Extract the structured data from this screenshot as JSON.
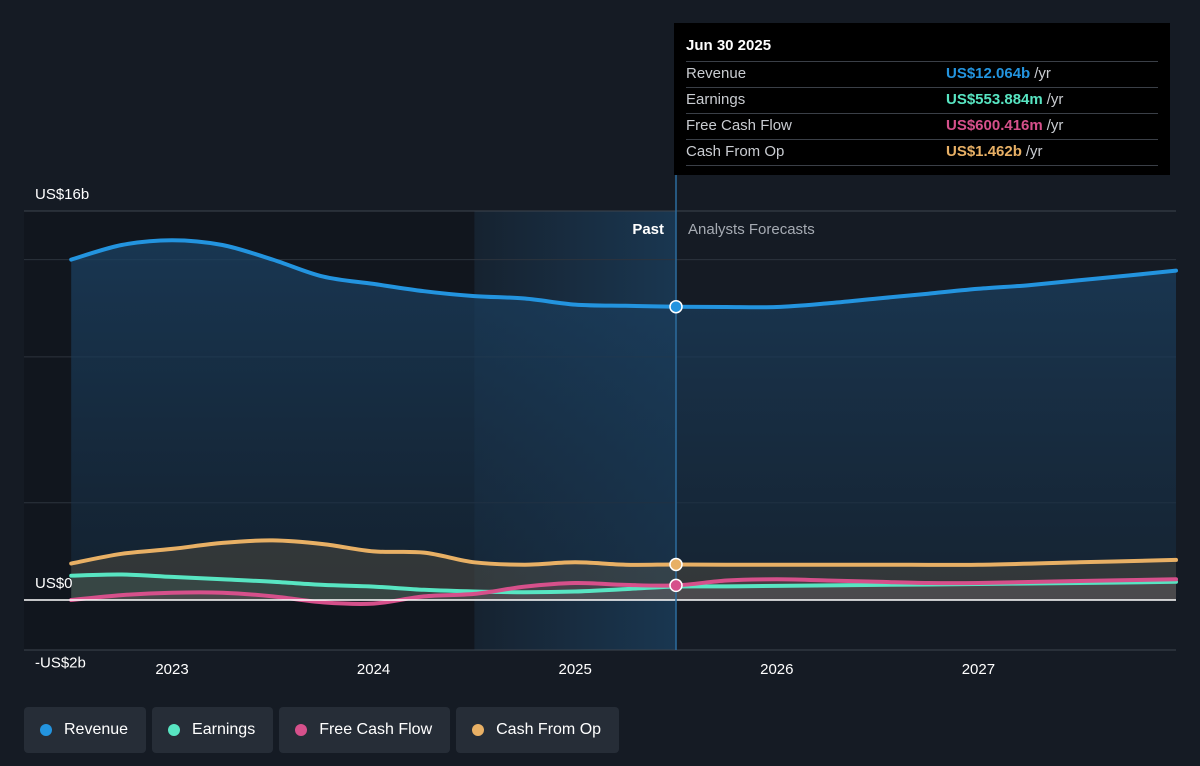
{
  "colors": {
    "background": "#151b24",
    "revenue": "#2394df",
    "earnings": "#58e5c2",
    "free_cash_flow": "#d6508b",
    "cash_from_op": "#e8b065",
    "past_band": "#1d4d75"
  },
  "tooltip": {
    "date": "Jun 30 2025",
    "rows": [
      {
        "name": "Revenue",
        "value": "US$12.064b",
        "unit": "/yr",
        "color": "#2394df"
      },
      {
        "name": "Earnings",
        "value": "US$553.884m",
        "unit": "/yr",
        "color": "#58e5c2"
      },
      {
        "name": "Free Cash Flow",
        "value": "US$600.416m",
        "unit": "/yr",
        "color": "#d6508b"
      },
      {
        "name": "Cash From Op",
        "value": "US$1.462b",
        "unit": "/yr",
        "color": "#e8b065"
      }
    ]
  },
  "sections": {
    "past": "Past",
    "forecast": "Analysts Forecasts"
  },
  "legend": [
    {
      "label": "Revenue",
      "color": "#2394df"
    },
    {
      "label": "Earnings",
      "color": "#58e5c2"
    },
    {
      "label": "Free Cash Flow",
      "color": "#d6508b"
    },
    {
      "label": "Cash From Op",
      "color": "#e8b065"
    }
  ],
  "chart_data": {
    "type": "line",
    "x_tick_labels": [
      "2023",
      "2024",
      "2025",
      "2026",
      "2027"
    ],
    "x_tick_values": [
      2023.0,
      2024.0,
      2025.0,
      2026.0,
      2027.0
    ],
    "y_tick_labels": [
      "US$16b",
      "US$0",
      "-US$2b"
    ],
    "y_tick_values": [
      16,
      0,
      -2
    ],
    "ylim": [
      -2,
      16
    ],
    "xlim": [
      2022.75,
      2028.0
    ],
    "past_band": [
      2024.5,
      2025.5
    ],
    "marker_x": 2025.5,
    "grid": true,
    "legend_position": "bottom",
    "series": [
      {
        "name": "Revenue",
        "color": "#2394df",
        "x": [
          2022.5,
          2022.75,
          2023.0,
          2023.25,
          2023.5,
          2023.75,
          2024.0,
          2024.25,
          2024.5,
          2024.75,
          2025.0,
          2025.25,
          2025.5,
          2025.75,
          2026.0,
          2026.25,
          2026.5,
          2026.75,
          2027.0,
          2027.25,
          2027.5,
          2027.75,
          2028.0
        ],
        "y": [
          14.0,
          14.6,
          14.8,
          14.6,
          14.0,
          13.3,
          13.0,
          12.7,
          12.5,
          12.4,
          12.15,
          12.1,
          12.064,
          12.05,
          12.05,
          12.2,
          12.4,
          12.6,
          12.8,
          12.95,
          13.15,
          13.35,
          13.55
        ]
      },
      {
        "name": "Earnings",
        "color": "#58e5c2",
        "x": [
          2022.5,
          2022.75,
          2023.0,
          2023.25,
          2023.5,
          2023.75,
          2024.0,
          2024.25,
          2024.5,
          2024.75,
          2025.0,
          2025.25,
          2025.5,
          2025.75,
          2026.0,
          2026.5,
          2027.0,
          2027.5,
          2028.0
        ],
        "y": [
          1.0,
          1.05,
          0.95,
          0.85,
          0.75,
          0.62,
          0.55,
          0.42,
          0.35,
          0.32,
          0.35,
          0.45,
          0.554,
          0.56,
          0.58,
          0.62,
          0.66,
          0.7,
          0.75
        ]
      },
      {
        "name": "Free Cash Flow",
        "color": "#d6508b",
        "x": [
          2022.5,
          2022.75,
          2023.0,
          2023.25,
          2023.5,
          2023.75,
          2024.0,
          2024.25,
          2024.5,
          2024.75,
          2025.0,
          2025.25,
          2025.5,
          2025.75,
          2026.0,
          2026.25,
          2026.5,
          2026.75,
          2027.0,
          2027.5,
          2028.0
        ],
        "y": [
          0.0,
          0.2,
          0.3,
          0.3,
          0.15,
          -0.1,
          -0.15,
          0.15,
          0.25,
          0.55,
          0.7,
          0.62,
          0.6,
          0.8,
          0.85,
          0.8,
          0.75,
          0.7,
          0.7,
          0.78,
          0.85
        ]
      },
      {
        "name": "Cash From Op",
        "color": "#e8b065",
        "x": [
          2022.5,
          2022.75,
          2023.0,
          2023.25,
          2023.5,
          2023.75,
          2024.0,
          2024.25,
          2024.5,
          2024.75,
          2025.0,
          2025.25,
          2025.5,
          2025.75,
          2026.0,
          2026.5,
          2027.0,
          2027.5,
          2028.0
        ],
        "y": [
          1.5,
          1.9,
          2.1,
          2.35,
          2.45,
          2.3,
          2.0,
          1.95,
          1.55,
          1.45,
          1.55,
          1.45,
          1.462,
          1.45,
          1.45,
          1.45,
          1.45,
          1.55,
          1.65
        ]
      }
    ]
  }
}
